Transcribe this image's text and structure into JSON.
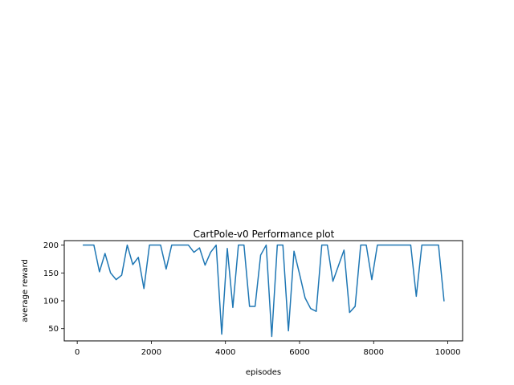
{
  "chart_data": {
    "type": "line",
    "title": "CartPole-v0 Performance plot",
    "xlabel": "episodes",
    "ylabel": "average reward",
    "xlim": [
      -350,
      10400
    ],
    "ylim": [
      28,
      208
    ],
    "xticks": [
      0,
      2000,
      4000,
      6000,
      8000,
      10000
    ],
    "xtick_labels": [
      "0",
      "2000",
      "4000",
      "6000",
      "8000",
      "10000"
    ],
    "yticks": [
      50,
      100,
      150,
      200
    ],
    "ytick_labels": [
      "50",
      "100",
      "150",
      "200"
    ],
    "grid": false,
    "legend": "none",
    "line_color": "#1f77b4",
    "series": [
      {
        "x": [
          150,
          300,
          450,
          600,
          750,
          900,
          1050,
          1200,
          1350,
          1500,
          1650,
          1800,
          1950,
          2100,
          2250,
          2400,
          2550,
          2700,
          2850,
          3000,
          3150,
          3300,
          3450,
          3600,
          3750,
          3900,
          4050,
          4200,
          4350,
          4500,
          4650,
          4800,
          4950,
          5100,
          5250,
          5400,
          5550,
          5700,
          5850,
          6000,
          6150,
          6300,
          6450,
          6600,
          6750,
          6900,
          7050,
          7200,
          7350,
          7500,
          7650,
          7800,
          7950,
          8100,
          8250,
          8400,
          8550,
          8700,
          8850,
          9000,
          9150,
          9300,
          9450,
          9600,
          9750,
          9900
        ],
        "y": [
          200,
          200,
          200,
          152,
          185,
          150,
          138,
          146,
          200,
          165,
          178,
          122,
          200,
          200,
          200,
          157,
          200,
          200,
          200,
          200,
          187,
          195,
          164,
          187,
          200,
          40,
          194,
          88,
          200,
          200,
          90,
          90,
          182,
          200,
          36,
          200,
          200,
          46,
          189,
          148,
          105,
          86,
          81,
          200,
          200,
          135,
          163,
          191,
          79,
          90,
          200,
          200,
          138,
          200,
          200,
          200,
          200,
          200,
          200,
          200,
          108,
          200,
          200,
          200,
          200,
          99
        ]
      }
    ]
  }
}
